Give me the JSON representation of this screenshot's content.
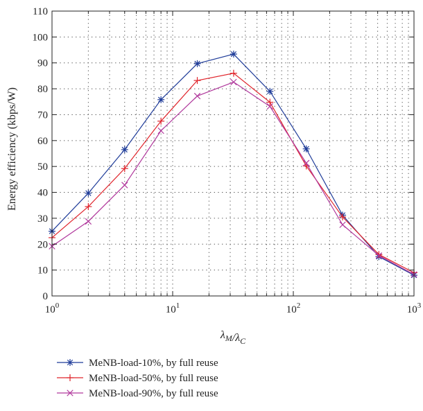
{
  "chart_data": {
    "type": "line",
    "xscale": "log",
    "xlim": [
      1,
      1000
    ],
    "ylim": [
      0,
      110
    ],
    "grid": true,
    "legend_position": "bottom",
    "xlabel": "λM/λC",
    "ylabel": "Energy efficiency (kbps/W)",
    "x_ticks": [
      {
        "value": 1,
        "label_base": "10",
        "label_exp": "0"
      },
      {
        "value": 10,
        "label_base": "10",
        "label_exp": "1"
      },
      {
        "value": 100,
        "label_base": "10",
        "label_exp": "2"
      },
      {
        "value": 1000,
        "label_base": "10",
        "label_exp": "3"
      }
    ],
    "y_ticks": [
      0,
      10,
      20,
      30,
      40,
      50,
      60,
      70,
      80,
      90,
      100,
      110
    ],
    "x": [
      1,
      2,
      4,
      8,
      16,
      32,
      64,
      128,
      256,
      512,
      1000
    ],
    "series": [
      {
        "name": "MeNB-load-10%, by full reuse",
        "color": "#1f3c99",
        "marker": "asterisk",
        "values": [
          25,
          39.7,
          56.5,
          75.8,
          89.7,
          93.4,
          79,
          56.8,
          31.2,
          15.2,
          8
        ]
      },
      {
        "name": "MeNB-load-50%, by full reuse",
        "color": "#e0242b",
        "marker": "plus",
        "values": [
          22.5,
          34.5,
          49.2,
          67.5,
          83.2,
          86,
          74.8,
          50.2,
          30.5,
          16,
          9
        ]
      },
      {
        "name": "MeNB-load-90%, by full reuse",
        "color": "#b0389c",
        "marker": "x",
        "values": [
          19.2,
          28.8,
          42.8,
          63.8,
          77.2,
          82.6,
          73.2,
          51.3,
          27.5,
          15.6,
          8.3
        ]
      }
    ]
  }
}
